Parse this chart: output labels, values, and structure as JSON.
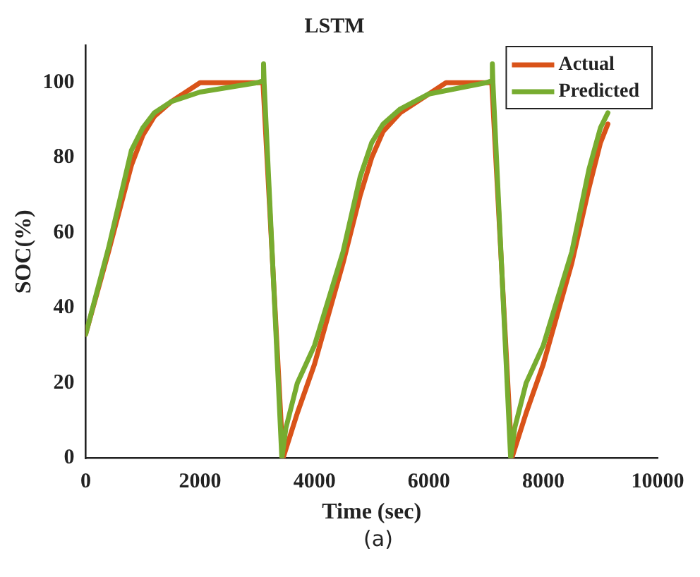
{
  "chart_data": {
    "type": "line",
    "title": "LSTM",
    "xlabel": "Time (sec)",
    "ylabel": "SOC(%)",
    "annotations": [
      "(a)"
    ],
    "xlim": [
      0,
      10000
    ],
    "xticks": [
      0,
      2000,
      4000,
      6000,
      8000,
      10000
    ],
    "ylim": [
      0,
      110
    ],
    "yticks": [
      0,
      20,
      40,
      60,
      80,
      100
    ],
    "grid": false,
    "legend": "top right",
    "marker": "none",
    "line_style": "solid",
    "series": [
      {
        "name": "Actual",
        "color": "#d95319",
        "x": [
          0,
          400,
          800,
          1000,
          1200,
          1500,
          2000,
          3100,
          3450,
          3700,
          4000,
          4500,
          4800,
          5000,
          5200,
          5500,
          6000,
          6300,
          7100,
          7450,
          7700,
          8000,
          8500,
          8800,
          9000,
          9130
        ],
        "values": [
          33,
          55,
          78,
          86,
          91,
          95,
          100,
          100,
          0,
          12,
          25,
          52,
          70,
          80,
          87,
          92,
          97,
          100,
          100,
          0,
          12,
          25,
          52,
          72,
          84,
          89
        ]
      },
      {
        "name": "Predicted",
        "color": "#77ac30",
        "x": [
          0,
          400,
          800,
          1000,
          1200,
          1500,
          2000,
          3000,
          3100,
          3110,
          3120,
          3430,
          3500,
          3700,
          4000,
          4500,
          4800,
          5000,
          5200,
          5500,
          6000,
          7000,
          7100,
          7110,
          7120,
          7430,
          7500,
          7700,
          8000,
          8500,
          8800,
          9000,
          9130
        ],
        "values": [
          33,
          56,
          82,
          88,
          92,
          95,
          97.5,
          100,
          100.5,
          105,
          100,
          0,
          8,
          20,
          30,
          55,
          75,
          84,
          89,
          93,
          97,
          100,
          100.5,
          105,
          100,
          0,
          8,
          20,
          30,
          55,
          77,
          88,
          92
        ]
      }
    ]
  }
}
